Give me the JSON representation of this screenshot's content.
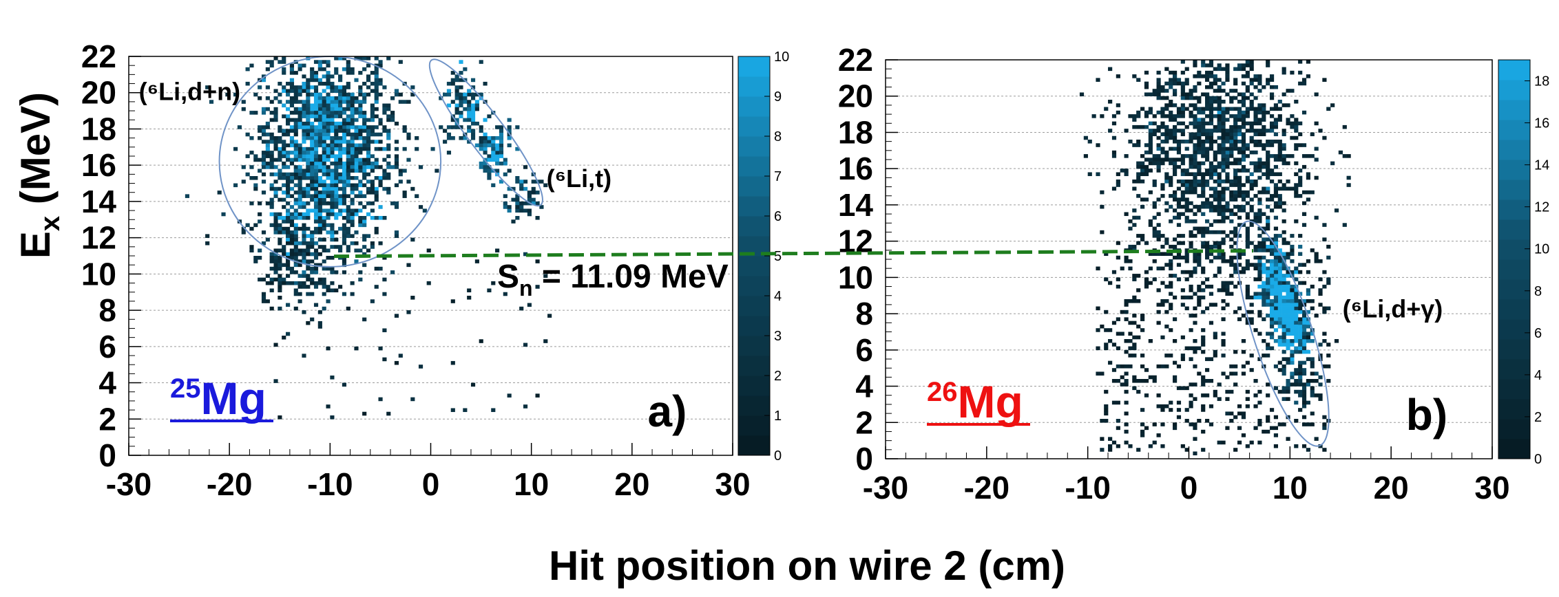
{
  "colors": {
    "density_dark": "#061a22",
    "density_mid": "#0f4f6a",
    "density_light": "#1aabe8",
    "ellipse": "#6f93c7",
    "sn_line": "#1e7d1e",
    "mg25": "#1a1adc",
    "mg26": "#ee1111",
    "grid": "#9a9a9a"
  },
  "chart_data": {
    "type": "heatmap",
    "ylabel": "E",
    "ylabel_sub": "x",
    "ylabel_unit": " (MeV)",
    "xlabel": "Hit position on wire 2 (cm)",
    "sn_label": {
      "pre": "S",
      "sub": "n",
      "post": " = 11.09 MeV"
    },
    "sn_value": 11.09,
    "panels": [
      {
        "letter": "a)",
        "nucleus": {
          "mass": "25",
          "symbol": "Mg",
          "color": "mg25"
        },
        "xlim": [
          -30,
          30
        ],
        "ylim": [
          0,
          22
        ],
        "xticks": [
          "-30",
          "-20",
          "-10",
          "0",
          "10",
          "20",
          "30"
        ],
        "yticks": [
          "0",
          "2",
          "4",
          "6",
          "8",
          "10",
          "12",
          "14",
          "16",
          "18",
          "20",
          "22"
        ],
        "zlim": [
          0,
          10
        ],
        "zticks": [
          "0",
          "1",
          "2",
          "3",
          "4",
          "5",
          "6",
          "7",
          "8",
          "9",
          "10"
        ],
        "clusters": [
          {
            "x": -10.5,
            "y": 16.8,
            "sx": 3.4,
            "sy": 3.0,
            "n": 2000,
            "weight": 3.5
          },
          {
            "x": -13.5,
            "y": 11.0,
            "sx": 1.8,
            "sy": 1.4,
            "n": 200,
            "weight": 2.0
          },
          {
            "x": 3.5,
            "y": 19.0,
            "sx": 1.2,
            "sy": 1.0,
            "n": 130,
            "weight": 4.5
          },
          {
            "x": 6.5,
            "y": 16.8,
            "sx": 0.9,
            "sy": 0.7,
            "n": 90,
            "weight": 6.0
          },
          {
            "x": 9.0,
            "y": 14.3,
            "sx": 0.8,
            "sy": 0.7,
            "n": 60,
            "weight": 3.5
          }
        ],
        "bands": [
          {
            "x1": -16,
            "x2": -5,
            "y": 13.2,
            "weight": 8.0
          }
        ],
        "sparse": {
          "x1": -16,
          "x2": 12,
          "y1": 2,
          "y2": 12,
          "n": 70
        },
        "regions": [
          {
            "cx": -10,
            "cy": 16.2,
            "rx": 11.0,
            "ry": 5.8,
            "angle": 0
          },
          {
            "cx": 5.5,
            "cy": 17.8,
            "rx": 1.8,
            "ry": 5.0,
            "angle": -37
          }
        ],
        "labels": [
          {
            "text": "(⁶Li,d+n)",
            "x": -29,
            "y": 19.6
          },
          {
            "text": "(⁶Li,t)",
            "x": 11.5,
            "y": 14.8
          }
        ]
      },
      {
        "letter": "b)",
        "nucleus": {
          "mass": "26",
          "symbol": "Mg",
          "color": "mg26"
        },
        "xlim": [
          -30,
          30
        ],
        "ylim": [
          0,
          22
        ],
        "xticks": [
          "-30",
          "-20",
          "-10",
          "0",
          "10",
          "20",
          "30"
        ],
        "yticks": [
          "0",
          "2",
          "4",
          "6",
          "8",
          "10",
          "12",
          "14",
          "16",
          "18",
          "20",
          "22"
        ],
        "zlim": [
          0,
          19
        ],
        "zticks": [
          "0",
          "2",
          "4",
          "6",
          "8",
          "10",
          "12",
          "14",
          "16",
          "18"
        ],
        "clusters": [
          {
            "x": 3.0,
            "y": 17.0,
            "sx": 4.5,
            "sy": 3.5,
            "n": 1800,
            "weight": 3.0
          },
          {
            "x": 8.5,
            "y": 10.0,
            "sx": 0.8,
            "sy": 1.0,
            "n": 220,
            "weight": 10.0
          },
          {
            "x": 9.5,
            "y": 8.3,
            "sx": 0.8,
            "sy": 0.8,
            "n": 200,
            "weight": 11.0
          },
          {
            "x": 10.3,
            "y": 7.0,
            "sx": 0.8,
            "sy": 0.8,
            "n": 170,
            "weight": 12.0
          },
          {
            "x": 11.0,
            "y": 4.5,
            "sx": 0.9,
            "sy": 0.8,
            "n": 70,
            "weight": 5.0
          }
        ],
        "bands": [],
        "sparse": {
          "x1": -9,
          "x2": 14,
          "y1": 0.3,
          "y2": 12,
          "n": 550
        },
        "regions": [
          {
            "cx": 9.3,
            "cy": 6.9,
            "rx": 2.9,
            "ry": 6.5,
            "angle": -18
          }
        ],
        "labels": [
          {
            "text": "(⁶Li,d+γ)",
            "x": 15.2,
            "y": 7.8
          }
        ]
      }
    ]
  }
}
